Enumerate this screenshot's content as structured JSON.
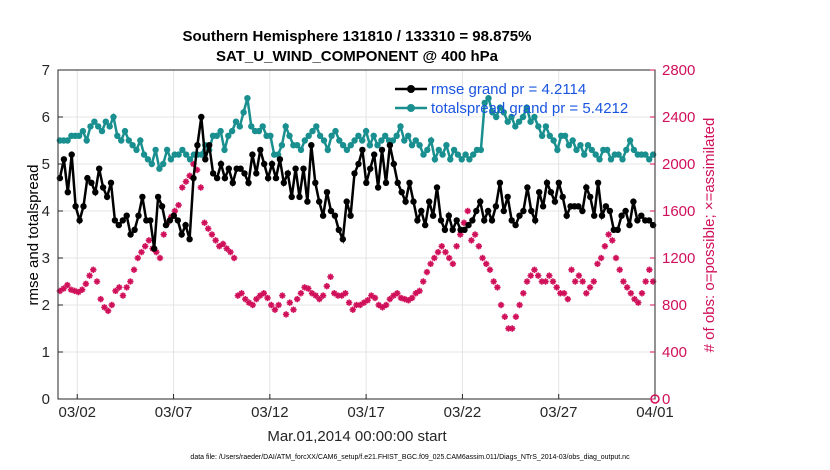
{
  "chart_data": {
    "type": "line",
    "title": "Southern Hemisphere 131810 / 133310 = 98.875%",
    "subtitle": "SAT_U_WIND_COMPONENT @ 400 hPa",
    "xlabel": "Mar.01,2014 00:00:00 start",
    "ylabel_left": "rmse and totalspread",
    "ylabel_right": "# of obs: o=possible; ×=assimilated",
    "footnote": "data file: /Users/raeder/DAI/ATM_forcXX/CAM6_setup/f.e21.FHIST_BGC.f09_025.CAM6assim.011/Diags_NTrS_2014-03/obs_diag_output.nc",
    "x_ticks": [
      {
        "day": 1,
        "label": "03/02"
      },
      {
        "day": 6,
        "label": "03/07"
      },
      {
        "day": 11,
        "label": "03/12"
      },
      {
        "day": 16,
        "label": "03/17"
      },
      {
        "day": 21,
        "label": "03/22"
      },
      {
        "day": 26,
        "label": "03/27"
      },
      {
        "day": 31,
        "label": "04/01"
      }
    ],
    "xlim": [
      0.0,
      31.0
    ],
    "ylim_left": [
      0,
      7
    ],
    "yticks_left": [
      "0",
      "1",
      "2",
      "3",
      "4",
      "5",
      "6",
      "7"
    ],
    "ylim_right": [
      0,
      2800
    ],
    "yticks_right": [
      "0",
      "400",
      "800",
      "1200",
      "1600",
      "2000",
      "2400",
      "2800"
    ],
    "legend": {
      "position": "top-right",
      "entries": [
        "rmse grand pr = 4.2114",
        "totalspread grand pr = 5.4212"
      ]
    },
    "colors": {
      "rmse": "#000000",
      "totalspread": "#1a8f8f",
      "obs": "#d0105a",
      "legend_text": "#1a55e0"
    },
    "series": [
      {
        "name": "rmse",
        "axis": "left",
        "values": [
          4.7,
          5.1,
          4.4,
          5.2,
          4.1,
          3.8,
          4.1,
          4.7,
          4.6,
          4.4,
          4.9,
          4.5,
          4.3,
          4.6,
          3.8,
          3.7,
          3.8,
          3.9,
          3.5,
          3.6,
          3.9,
          4.3,
          3.8,
          3.8,
          3.2,
          4.3,
          4.1,
          3.7,
          3.8,
          3.9,
          3.8,
          3.5,
          3.7,
          3.4,
          4.7,
          5.4,
          6.0,
          5.1,
          5.4,
          4.8,
          4.7,
          5.0,
          4.7,
          4.9,
          4.6,
          4.9,
          4.9,
          4.8,
          4.6,
          5.2,
          4.8,
          5.3,
          5.0,
          4.7,
          5.0,
          4.7,
          5.1,
          4.6,
          4.8,
          4.3,
          4.9,
          4.3,
          4.9,
          4.2,
          5.4,
          4.6,
          4.2,
          3.9,
          4.4,
          4.0,
          3.9,
          3.6,
          3.4,
          4.2,
          3.9,
          4.8,
          5.0,
          5.3,
          4.6,
          4.9,
          5.2,
          4.5,
          5.3,
          4.6,
          5.4,
          5.0,
          4.6,
          4.4,
          4.2,
          4.6,
          4.2,
          3.8,
          4.0,
          3.7,
          4.2,
          3.9,
          4.5,
          3.8,
          3.6,
          3.9,
          3.6,
          3.8,
          3.6,
          3.6,
          3.7,
          3.8,
          4.0,
          4.2,
          3.8,
          4.0,
          3.8,
          4.1,
          4.6,
          4.0,
          4.3,
          3.8,
          3.7,
          3.9,
          4.0,
          4.5,
          4.0,
          3.8,
          4.4,
          4.1,
          4.6,
          4.4,
          4.2,
          4.6,
          4.3,
          3.9,
          4.1,
          4.1,
          4.1,
          4.0,
          4.5,
          4.3,
          3.9,
          4.6,
          3.9,
          4.1,
          4.0,
          3.6,
          3.6,
          3.9,
          4.0,
          3.7,
          4.2,
          3.8,
          3.9,
          3.8,
          3.8,
          3.7
        ]
      },
      {
        "name": "totalspread",
        "axis": "left",
        "values": [
          5.5,
          5.5,
          5.5,
          5.6,
          5.6,
          5.6,
          5.7,
          5.5,
          5.8,
          5.9,
          5.8,
          5.7,
          5.9,
          5.8,
          6.0,
          5.6,
          5.5,
          5.7,
          5.5,
          5.4,
          5.3,
          5.5,
          5.2,
          5.1,
          5.0,
          5.3,
          4.9,
          5.0,
          5.3,
          5.1,
          5.2,
          5.2,
          5.3,
          5.2,
          5.1,
          5.2,
          5.2,
          5.2,
          5.4,
          5.3,
          5.6,
          5.6,
          5.7,
          5.3,
          5.6,
          5.7,
          5.9,
          5.8,
          6.1,
          6.4,
          5.8,
          5.7,
          5.7,
          5.8,
          5.6,
          5.6,
          5.2,
          5.2,
          5.4,
          5.8,
          5.6,
          5.4,
          5.4,
          5.3,
          5.5,
          5.6,
          5.7,
          5.8,
          5.6,
          5.5,
          5.3,
          5.6,
          5.7,
          5.5,
          5.4,
          5.3,
          5.4,
          5.5,
          5.6,
          5.5,
          5.7,
          5.4,
          5.6,
          5.4,
          5.5,
          5.6,
          5.5,
          5.5,
          5.6,
          5.8,
          5.5,
          5.6,
          5.4,
          5.5,
          5.4,
          5.2,
          5.3,
          5.5,
          5.1,
          5.3,
          5.2,
          5.4,
          5.1,
          5.3,
          5.2,
          5.1,
          5.2,
          5.1,
          5.2,
          5.3,
          5.3,
          6.3,
          6.4,
          6.1,
          6.0,
          6.2,
          6.1,
          5.9,
          6.0,
          5.8,
          5.9,
          6.0,
          6.2,
          5.9,
          6.0,
          5.8,
          5.6,
          5.8,
          5.6,
          5.5,
          5.3,
          5.6,
          5.6,
          5.4,
          5.5,
          5.3,
          5.4,
          5.2,
          5.4,
          5.3,
          5.2,
          5.1,
          5.3,
          5.3,
          5.1,
          5.2,
          5.2,
          5.1,
          5.3,
          5.5,
          5.3,
          5.2,
          5.2,
          5.2,
          5.1,
          5.2
        ]
      },
      {
        "name": "obs count (assimilated)",
        "axis": "right",
        "values": [
          920,
          940,
          970,
          930,
          920,
          910,
          930,
          980,
          1050,
          1100,
          1000,
          850,
          780,
          750,
          800,
          920,
          950,
          880,
          950,
          1000,
          1100,
          1200,
          1250,
          1300,
          1350,
          1280,
          1250,
          1200,
          1400,
          1500,
          1550,
          1600,
          1650,
          1800,
          1850,
          1900,
          2000,
          1950,
          1800,
          1500,
          1450,
          1400,
          1350,
          1300,
          1320,
          1280,
          1250,
          1200,
          880,
          900,
          850,
          820,
          800,
          850,
          880,
          900,
          860,
          800,
          760,
          800,
          880,
          720,
          820,
          760,
          850,
          900,
          950,
          940,
          900,
          880,
          850,
          880,
          960,
          1040,
          900,
          880,
          880,
          900,
          820,
          760,
          800,
          800,
          820,
          840,
          880,
          860,
          800,
          780,
          800,
          850,
          880,
          900,
          860,
          850,
          840,
          860,
          900,
          920,
          1000,
          1080,
          1150,
          1200,
          1250,
          1300,
          1250,
          1200,
          1150,
          1300,
          1400,
          1500,
          1600,
          1350,
          1400,
          1300,
          1200,
          1150,
          1100,
          1000,
          950,
          800,
          700,
          600,
          600,
          700,
          800,
          900,
          1000,
          1050,
          1100,
          1050,
          1000,
          1000,
          1050,
          1000,
          950,
          900,
          900,
          850,
          1100,
          1000,
          1050,
          1000,
          900,
          950,
          1000,
          1150,
          1200,
          1300,
          1400,
          1350,
          1200,
          1100,
          1000,
          950,
          900,
          850,
          820,
          900,
          1000,
          1100,
          1000
        ]
      }
    ],
    "obs_count_possible_final": 0
  }
}
